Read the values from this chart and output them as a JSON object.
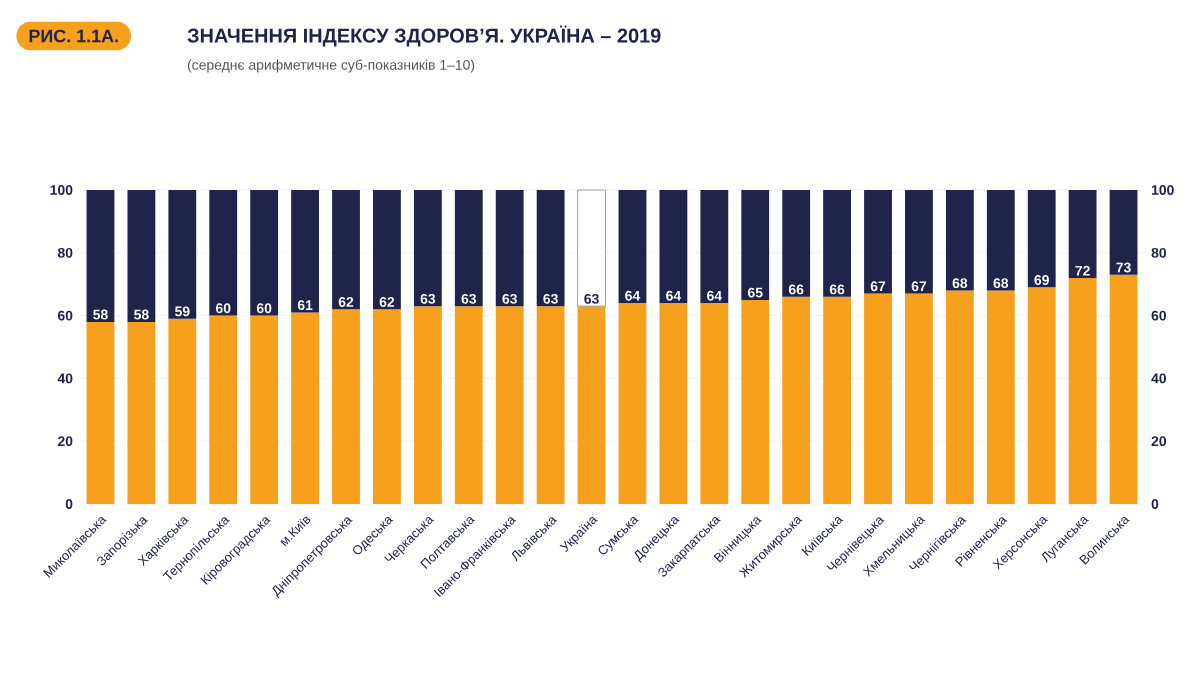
{
  "chart_data": {
    "type": "bar",
    "title": "ЗНАЧЕННЯ ІНДЕКСУ ЗДОРОВ’Я. УКРАЇНА – 2019",
    "subtitle": "(середнє арифметичне суб-показників 1–10)",
    "annotations": [
      "РИС. 1.1А."
    ],
    "categories": [
      "Миколаївська",
      "Запорізька",
      "Харківська",
      "Тернопільська",
      "Кіровоградська",
      "м.Київ",
      "Дніпропетровська",
      "Одеська",
      "Черкаська",
      "Полтавська",
      "Івано-Франківська",
      "Львівська",
      "Україна",
      "Сумська",
      "Донецька",
      "Закарпатська",
      "Вінницька",
      "Житомирська",
      "Київська",
      "Чернівецька",
      "Хмельницька",
      "Чернігівська",
      "Рівненська",
      "Херсонська",
      "Луганська",
      "Волинська"
    ],
    "stacked": true,
    "series": [
      {
        "color": "#f7a01e",
        "values": [
          58,
          58,
          59,
          60,
          60,
          61,
          62,
          62,
          63,
          63,
          63,
          63,
          63,
          64,
          64,
          64,
          65,
          66,
          66,
          67,
          67,
          68,
          68,
          69,
          72,
          73
        ],
        "value_labels": [
          "58",
          "58",
          "59",
          "60",
          "60",
          "61",
          "62",
          "62",
          "63",
          "63",
          "63",
          "63",
          "63",
          "64",
          "64",
          "64",
          "65",
          "66",
          "66",
          "67",
          "67",
          "68",
          "68",
          "69",
          "72",
          "73"
        ]
      },
      {
        "colors": [
          "#20234a",
          "#20234a",
          "#20234a",
          "#20234a",
          "#20234a",
          "#20234a",
          "#20234a",
          "#20234a",
          "#20234a",
          "#20234a",
          "#20234a",
          "#20234a",
          "#ffffff",
          "#20234a",
          "#20234a",
          "#20234a",
          "#20234a",
          "#20234a",
          "#20234a",
          "#20234a",
          "#20234a",
          "#20234a",
          "#20234a",
          "#20234a",
          "#20234a",
          "#20234a"
        ],
        "values": [
          42,
          42,
          41,
          40,
          40,
          39,
          38,
          38,
          37,
          37,
          37,
          37,
          37,
          36,
          36,
          36,
          35,
          34,
          34,
          33,
          33,
          32,
          32,
          31,
          28,
          27
        ]
      }
    ],
    "ylim": [
      0,
      100
    ],
    "yticks": [
      0,
      20,
      40,
      60,
      80,
      100
    ],
    "y2lim": [
      0,
      100
    ],
    "y2ticks": [
      0,
      20,
      40,
      60,
      80,
      100
    ],
    "grid": "y"
  }
}
